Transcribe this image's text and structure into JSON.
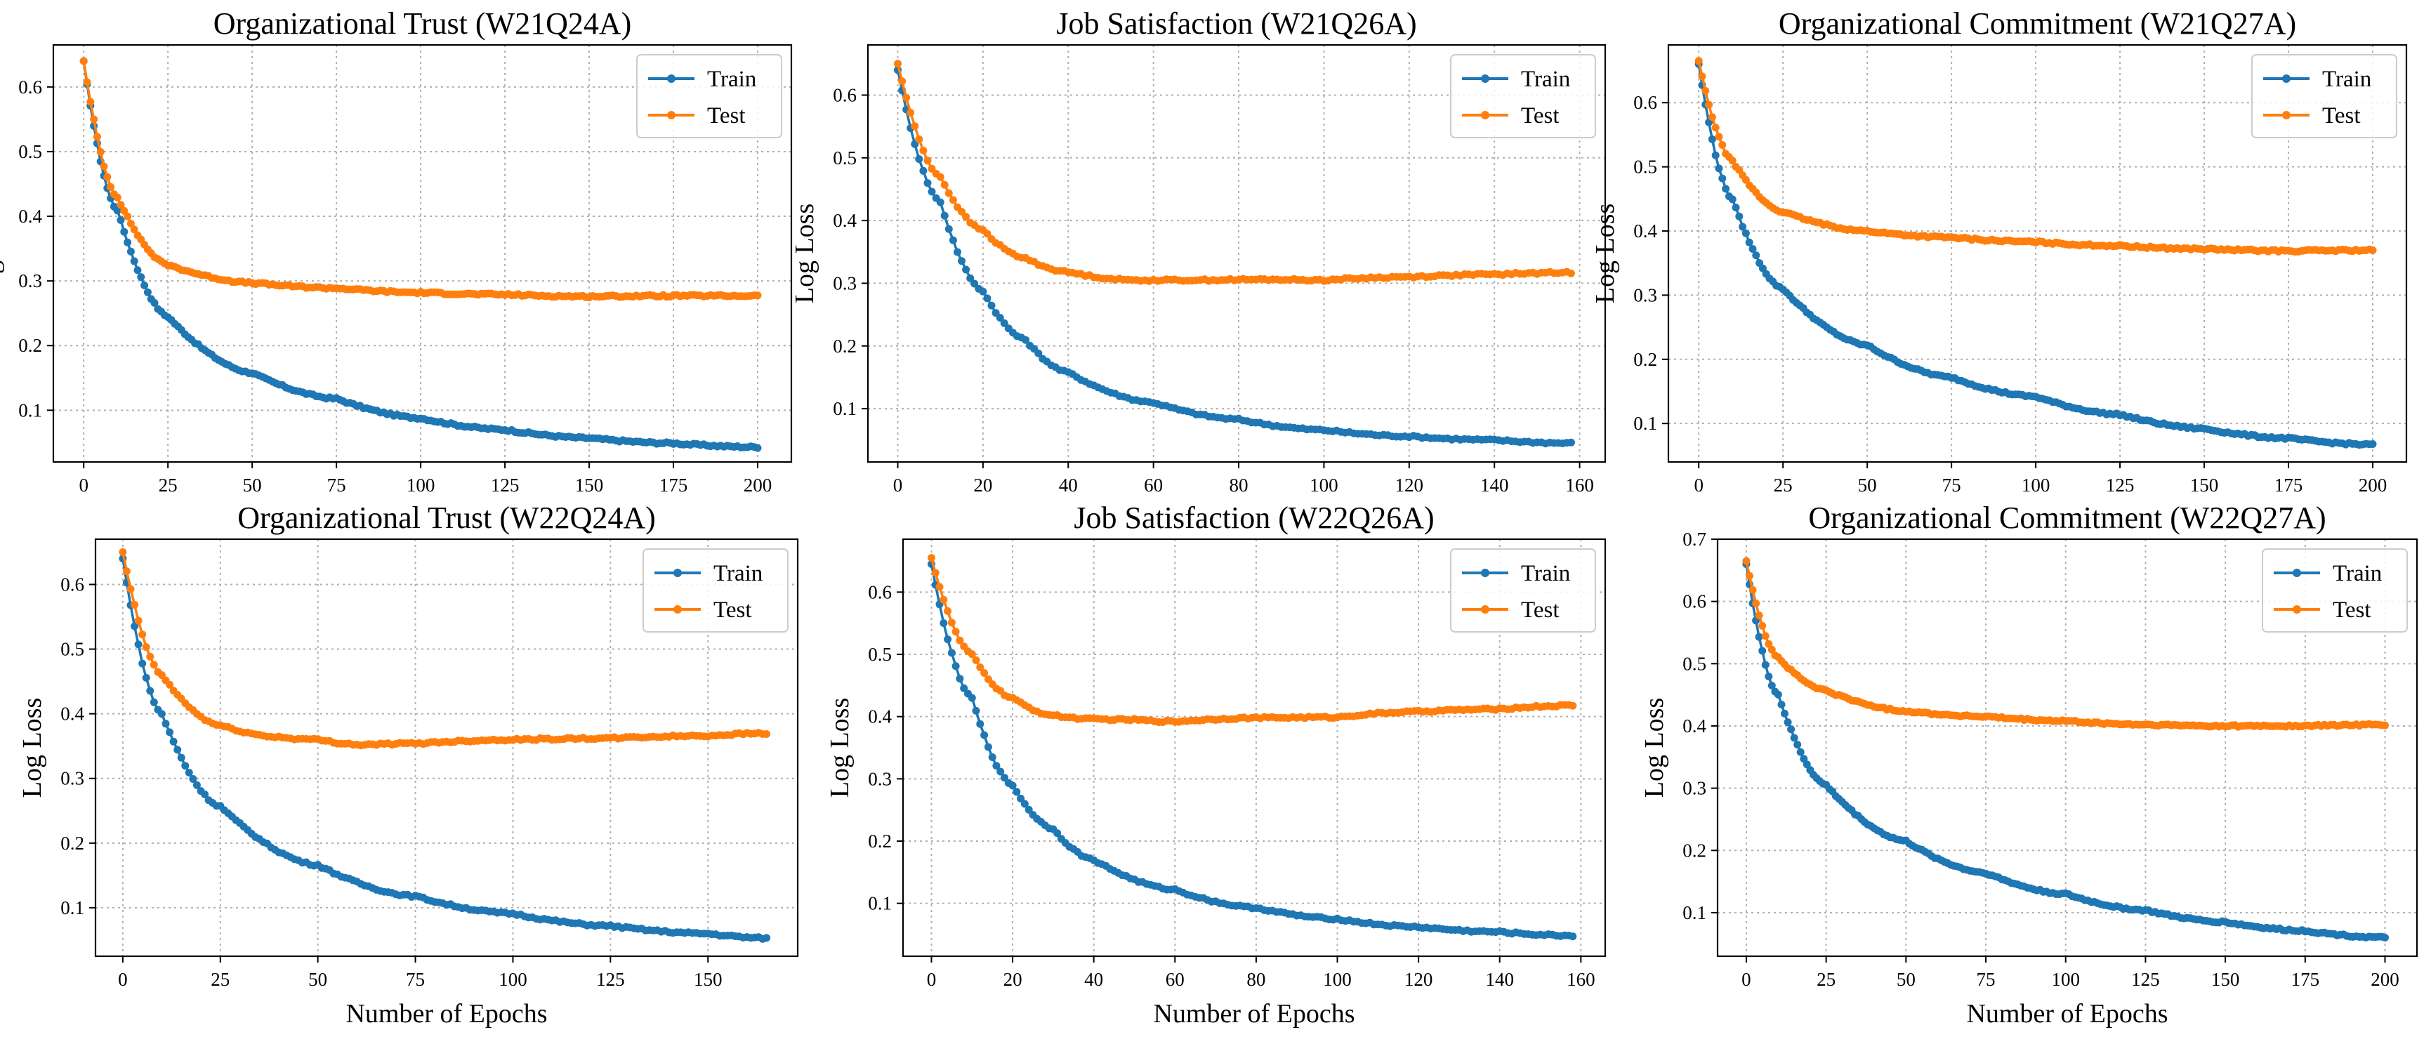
{
  "colors": {
    "train": "#1f77b4",
    "test": "#ff7f0e",
    "grid": "#b0b0b0"
  },
  "chart_data": [
    {
      "type": "line",
      "title": "Organizational Trust (W21Q24A)",
      "xlabel": "",
      "ylabel": "Log Loss",
      "x_ticks": [
        0,
        25,
        50,
        75,
        100,
        125,
        150,
        175,
        200
      ],
      "y_ticks": [
        0.1,
        0.2,
        0.3,
        0.4,
        0.5,
        0.6
      ],
      "xlim": [
        -9,
        210
      ],
      "ylim": [
        0.02,
        0.665
      ],
      "grid": true,
      "legend_position": "top-right",
      "series": [
        {
          "name": "Train",
          "n_epochs": 200,
          "start": 0.64,
          "end": 0.043,
          "shape": [
            [
              0,
              0.64
            ],
            [
              10,
              0.41
            ],
            [
              25,
              0.245
            ],
            [
              50,
              0.158
            ],
            [
              75,
              0.118
            ],
            [
              100,
              0.088
            ],
            [
              125,
              0.07
            ],
            [
              150,
              0.057
            ],
            [
              175,
              0.049
            ],
            [
              200,
              0.043
            ]
          ]
        },
        {
          "name": "Test",
          "n_epochs": 200,
          "start": 0.64,
          "end": 0.277,
          "shape": [
            [
              0,
              0.64
            ],
            [
              10,
              0.43
            ],
            [
              25,
              0.325
            ],
            [
              50,
              0.297
            ],
            [
              75,
              0.289
            ],
            [
              100,
              0.282
            ],
            [
              125,
              0.279
            ],
            [
              150,
              0.276
            ],
            [
              175,
              0.277
            ],
            [
              200,
              0.277
            ]
          ]
        }
      ]
    },
    {
      "type": "line",
      "title": "Job Satisfaction (W21Q26A)",
      "xlabel": "",
      "ylabel": "Log Loss",
      "x_ticks": [
        0,
        20,
        40,
        60,
        80,
        100,
        120,
        140,
        160
      ],
      "y_ticks": [
        0.1,
        0.2,
        0.3,
        0.4,
        0.5,
        0.6
      ],
      "xlim": [
        -7,
        166
      ],
      "ylim": [
        0.015,
        0.68
      ],
      "grid": true,
      "legend_position": "top-right",
      "series": [
        {
          "name": "Train",
          "n_epochs": 158,
          "start": 0.64,
          "end": 0.045,
          "shape": [
            [
              0,
              0.64
            ],
            [
              10,
              0.43
            ],
            [
              20,
              0.288
            ],
            [
              30,
              0.21
            ],
            [
              40,
              0.158
            ],
            [
              60,
              0.11
            ],
            [
              80,
              0.083
            ],
            [
              100,
              0.066
            ],
            [
              120,
              0.056
            ],
            [
              140,
              0.05
            ],
            [
              158,
              0.045
            ]
          ]
        },
        {
          "name": "Test",
          "n_epochs": 158,
          "start": 0.65,
          "end": 0.317,
          "shape": [
            [
              0,
              0.65
            ],
            [
              10,
              0.47
            ],
            [
              20,
              0.385
            ],
            [
              30,
              0.34
            ],
            [
              40,
              0.318
            ],
            [
              55,
              0.305
            ],
            [
              70,
              0.305
            ],
            [
              90,
              0.306
            ],
            [
              100,
              0.305
            ],
            [
              120,
              0.31
            ],
            [
              140,
              0.314
            ],
            [
              158,
              0.317
            ]
          ]
        }
      ]
    },
    {
      "type": "line",
      "title": "Organizational Commitment (W21Q27A)",
      "xlabel": "",
      "ylabel": "Log Loss",
      "x_ticks": [
        0,
        25,
        50,
        75,
        100,
        125,
        150,
        175,
        200
      ],
      "y_ticks": [
        0.1,
        0.2,
        0.3,
        0.4,
        0.5,
        0.6
      ],
      "xlim": [
        -9,
        210
      ],
      "ylim": [
        0.04,
        0.69
      ],
      "grid": true,
      "legend_position": "top-right",
      "series": [
        {
          "name": "Train",
          "n_epochs": 200,
          "start": 0.66,
          "end": 0.067,
          "shape": [
            [
              0,
              0.66
            ],
            [
              10,
              0.45
            ],
            [
              25,
              0.31
            ],
            [
              50,
              0.222
            ],
            [
              75,
              0.172
            ],
            [
              100,
              0.142
            ],
            [
              125,
              0.114
            ],
            [
              150,
              0.092
            ],
            [
              175,
              0.077
            ],
            [
              200,
              0.067
            ]
          ]
        },
        {
          "name": "Test",
          "n_epochs": 200,
          "start": 0.665,
          "end": 0.37,
          "shape": [
            [
              0,
              0.665
            ],
            [
              10,
              0.51
            ],
            [
              25,
              0.43
            ],
            [
              50,
              0.4
            ],
            [
              75,
              0.39
            ],
            [
              100,
              0.383
            ],
            [
              125,
              0.377
            ],
            [
              150,
              0.372
            ],
            [
              175,
              0.369
            ],
            [
              200,
              0.37
            ]
          ]
        }
      ]
    },
    {
      "type": "line",
      "title": "Organizational Trust (W22Q24A)",
      "xlabel": "Number of Epochs",
      "ylabel": "Log Loss",
      "x_ticks": [
        0,
        25,
        50,
        75,
        100,
        125,
        150
      ],
      "y_ticks": [
        0.1,
        0.2,
        0.3,
        0.4,
        0.5,
        0.6
      ],
      "xlim": [
        -7,
        173
      ],
      "ylim": [
        0.025,
        0.67
      ],
      "grid": true,
      "legend_position": "top-right",
      "series": [
        {
          "name": "Train",
          "n_epochs": 165,
          "start": 0.64,
          "end": 0.053,
          "shape": [
            [
              0,
              0.64
            ],
            [
              10,
              0.4
            ],
            [
              25,
              0.257
            ],
            [
              50,
              0.166
            ],
            [
              75,
              0.118
            ],
            [
              100,
              0.091
            ],
            [
              125,
              0.072
            ],
            [
              150,
              0.06
            ],
            [
              165,
              0.053
            ]
          ]
        },
        {
          "name": "Test",
          "n_epochs": 165,
          "start": 0.65,
          "end": 0.37,
          "shape": [
            [
              0,
              0.65
            ],
            [
              10,
              0.46
            ],
            [
              25,
              0.382
            ],
            [
              40,
              0.364
            ],
            [
              50,
              0.36
            ],
            [
              62,
              0.352
            ],
            [
              75,
              0.354
            ],
            [
              100,
              0.36
            ],
            [
              125,
              0.362
            ],
            [
              150,
              0.366
            ],
            [
              165,
              0.37
            ]
          ]
        }
      ]
    },
    {
      "type": "line",
      "title": "Job Satisfaction (W22Q26A)",
      "xlabel": "Number of Epochs",
      "ylabel": "Log Loss",
      "x_ticks": [
        0,
        20,
        40,
        60,
        80,
        100,
        120,
        140,
        160
      ],
      "y_ticks": [
        0.1,
        0.2,
        0.3,
        0.4,
        0.5,
        0.6
      ],
      "xlim": [
        -7,
        166
      ],
      "ylim": [
        0.015,
        0.685
      ],
      "grid": true,
      "legend_position": "top-right",
      "series": [
        {
          "name": "Train",
          "n_epochs": 158,
          "start": 0.645,
          "end": 0.048,
          "shape": [
            [
              0,
              0.645
            ],
            [
              10,
              0.43
            ],
            [
              20,
              0.29
            ],
            [
              30,
              0.22
            ],
            [
              40,
              0.17
            ],
            [
              60,
              0.122
            ],
            [
              80,
              0.093
            ],
            [
              100,
              0.075
            ],
            [
              120,
              0.062
            ],
            [
              140,
              0.054
            ],
            [
              158,
              0.048
            ]
          ]
        },
        {
          "name": "Test",
          "n_epochs": 158,
          "start": 0.655,
          "end": 0.418,
          "shape": [
            [
              0,
              0.655
            ],
            [
              10,
              0.5
            ],
            [
              20,
              0.43
            ],
            [
              30,
              0.402
            ],
            [
              40,
              0.396
            ],
            [
              50,
              0.395
            ],
            [
              60,
              0.392
            ],
            [
              80,
              0.398
            ],
            [
              100,
              0.399
            ],
            [
              120,
              0.408
            ],
            [
              140,
              0.412
            ],
            [
              158,
              0.418
            ]
          ]
        }
      ]
    },
    {
      "type": "line",
      "title": "Organizational Commitment (W22Q27A)",
      "xlabel": "Number of Epochs",
      "ylabel": "Log Loss",
      "x_ticks": [
        0,
        25,
        50,
        75,
        100,
        125,
        150,
        175,
        200
      ],
      "y_ticks": [
        0.1,
        0.2,
        0.3,
        0.4,
        0.5,
        0.6,
        0.7
      ],
      "xlim": [
        -9,
        210
      ],
      "ylim": [
        0.03,
        0.7
      ],
      "grid": true,
      "legend_position": "top-right",
      "series": [
        {
          "name": "Train",
          "n_epochs": 200,
          "start": 0.66,
          "end": 0.06,
          "shape": [
            [
              0,
              0.66
            ],
            [
              10,
              0.45
            ],
            [
              25,
              0.305
            ],
            [
              50,
              0.215
            ],
            [
              75,
              0.164
            ],
            [
              100,
              0.13
            ],
            [
              125,
              0.104
            ],
            [
              150,
              0.085
            ],
            [
              175,
              0.071
            ],
            [
              200,
              0.06
            ]
          ]
        },
        {
          "name": "Test",
          "n_epochs": 200,
          "start": 0.665,
          "end": 0.402,
          "shape": [
            [
              0,
              0.665
            ],
            [
              10,
              0.51
            ],
            [
              25,
              0.457
            ],
            [
              50,
              0.424
            ],
            [
              75,
              0.415
            ],
            [
              100,
              0.408
            ],
            [
              125,
              0.402
            ],
            [
              150,
              0.4
            ],
            [
              175,
              0.4
            ],
            [
              200,
              0.402
            ]
          ]
        }
      ]
    }
  ]
}
